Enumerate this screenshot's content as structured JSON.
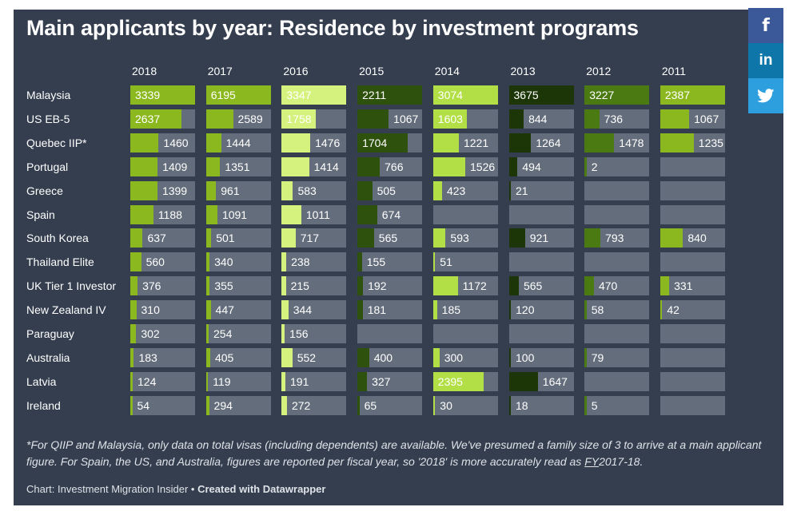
{
  "title": "Main applicants by year: Residence by investment programs",
  "footnote": {
    "text_before": "*For QIIP and Malaysia, only data on total visas (including dependents) are available. We've presumed a family size of 3 to arrive at a main applicant figure. For Spain, the US, and Australia, figures are reported per fiscal year, so '2018' is more accurately read as ",
    "fy_label": "FY",
    "text_after": "2017-18."
  },
  "credit": {
    "source": "Chart: Investment Migration Insider",
    "separator": " • ",
    "made_with": "Created with Datawrapper"
  },
  "share": {
    "facebook": "f",
    "linkedin": "in",
    "twitter": "twitter-icon"
  },
  "colors": {
    "panel_bg": "#343e4f",
    "cell_bg": "#646d7b",
    "scale": [
      "#1c3607",
      "#2e520d",
      "#4b7a12",
      "#6e9d16",
      "#8cb81f",
      "#b2de46",
      "#d6f27e"
    ]
  },
  "chart_data": {
    "type": "table",
    "title": "Main applicants by year: Residence by investment programs",
    "columns": [
      "2018",
      "2017",
      "2016",
      "2015",
      "2014",
      "2013",
      "2012",
      "2011"
    ],
    "rows": [
      {
        "program": "Malaysia",
        "values": [
          3339,
          6195,
          3347,
          2211,
          3074,
          3675,
          3227,
          2387
        ]
      },
      {
        "program": "US EB-5",
        "values": [
          2637,
          2589,
          1758,
          1067,
          1603,
          844,
          736,
          1067
        ]
      },
      {
        "program": "Quebec IIP*",
        "values": [
          1460,
          1444,
          1476,
          1704,
          1221,
          1264,
          1478,
          1235
        ]
      },
      {
        "program": "Portugal",
        "values": [
          1409,
          1351,
          1414,
          766,
          1526,
          494,
          2,
          null
        ]
      },
      {
        "program": "Greece",
        "values": [
          1399,
          961,
          583,
          505,
          423,
          21,
          null,
          null
        ]
      },
      {
        "program": "Spain",
        "values": [
          1188,
          1091,
          1011,
          674,
          null,
          null,
          null,
          null
        ]
      },
      {
        "program": "South Korea",
        "values": [
          637,
          501,
          717,
          565,
          593,
          921,
          793,
          840
        ]
      },
      {
        "program": "Thailand Elite",
        "values": [
          560,
          340,
          238,
          155,
          51,
          null,
          null,
          null
        ]
      },
      {
        "program": "UK Tier 1 Investor",
        "values": [
          376,
          355,
          215,
          192,
          1172,
          565,
          470,
          331
        ]
      },
      {
        "program": "New Zealand IV",
        "values": [
          310,
          447,
          344,
          181,
          185,
          120,
          58,
          42
        ]
      },
      {
        "program": "Paraguay",
        "values": [
          302,
          254,
          156,
          null,
          null,
          null,
          null,
          null
        ]
      },
      {
        "program": "Australia",
        "values": [
          183,
          405,
          552,
          400,
          300,
          100,
          79,
          null
        ]
      },
      {
        "program": "Latvia",
        "values": [
          124,
          119,
          191,
          327,
          2395,
          1647,
          null,
          null
        ]
      },
      {
        "program": "Ireland",
        "values": [
          54,
          294,
          272,
          65,
          30,
          18,
          5,
          null
        ]
      }
    ],
    "column_max": [
      3339,
      6195,
      3347,
      2211,
      3074,
      3675,
      3227,
      2387
    ],
    "column_colors": [
      "#8cb81f",
      "#8cb81f",
      "#d6f27e",
      "#2e520d",
      "#b2de46",
      "#1c3607",
      "#4b7a12",
      "#8cb81f"
    ]
  }
}
